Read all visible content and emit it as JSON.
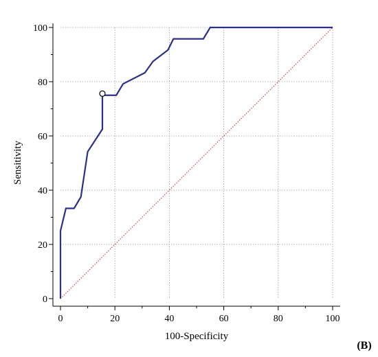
{
  "chart_data": {
    "type": "line",
    "title": "",
    "xlabel": "100-Specificity",
    "ylabel": "Sensitivity",
    "xlim": [
      0,
      100
    ],
    "ylim": [
      0,
      100
    ],
    "xticks": [
      0,
      20,
      40,
      60,
      80,
      100
    ],
    "yticks": [
      0,
      20,
      40,
      60,
      80,
      100
    ],
    "grid": true,
    "panel_label": "(B)",
    "series": [
      {
        "color": "#2b2e8a",
        "x": [
          0,
          0,
          2,
          5,
          7.5,
          10,
          15.4,
          15.4,
          20.5,
          23,
          31,
          34,
          39.5,
          41.5,
          52.5,
          55,
          100
        ],
        "y": [
          0,
          25,
          33.3,
          33.3,
          37.5,
          54.2,
          62.5,
          75,
          75,
          79.2,
          83.3,
          87.5,
          91.7,
          95.8,
          95.8,
          100,
          100
        ]
      }
    ],
    "reference_line": {
      "x": [
        0,
        100
      ],
      "y": [
        0,
        100
      ],
      "color": "#cc2222",
      "style": "dotted"
    },
    "markers": [
      {
        "x": 15.4,
        "y": 75.6,
        "style": "open-circle"
      }
    ]
  }
}
